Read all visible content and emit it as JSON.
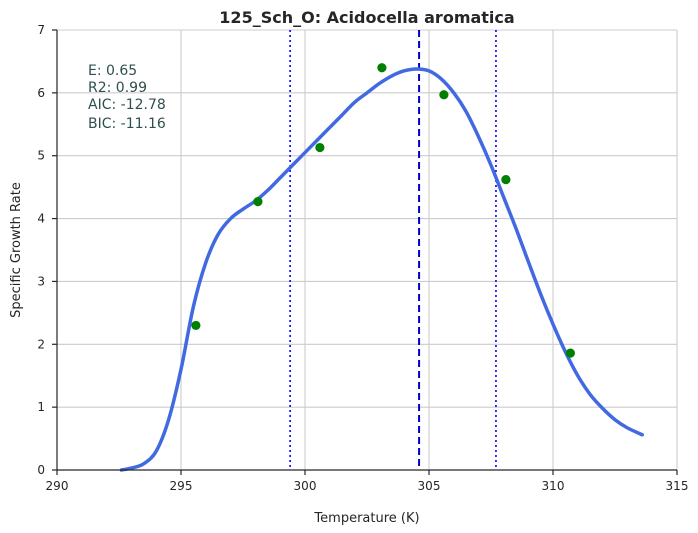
{
  "chart_data": {
    "type": "line",
    "title": "125_Sch_O: Acidocella aromatica",
    "xlabel": "Temperature (K)",
    "ylabel": "Specific Growth Rate",
    "xlim": [
      290,
      315
    ],
    "ylim": [
      0,
      7
    ],
    "x_ticks": [
      "290",
      "295",
      "300",
      "305",
      "310",
      "315"
    ],
    "y_ticks": [
      "0",
      "1",
      "2",
      "3",
      "4",
      "5",
      "6",
      "7"
    ],
    "grid": true,
    "colors": {
      "fit": "#4169e1",
      "points": "#008000",
      "peak_line": "#0000cd",
      "bound_lines": "#0000ff",
      "grid": "#cccccc",
      "axis": "#262626",
      "stats": "#2f4f4f"
    },
    "series": [
      {
        "kind": "fit",
        "x": [
          292.6,
          293.0,
          293.5,
          294.0,
          294.5,
          295.0,
          295.5,
          296.0,
          296.5,
          297.0,
          297.5,
          298.0,
          298.5,
          299.0,
          299.5,
          300.0,
          300.5,
          301.0,
          301.5,
          302.0,
          302.5,
          303.0,
          303.5,
          304.0,
          304.5,
          305.0,
          305.5,
          306.0,
          306.5,
          307.0,
          307.5,
          308.0,
          308.5,
          309.0,
          309.5,
          310.0,
          310.5,
          311.0,
          311.5,
          312.0,
          312.5,
          313.0,
          313.6
        ],
        "y": [
          0.0,
          0.03,
          0.1,
          0.3,
          0.8,
          1.6,
          2.6,
          3.3,
          3.75,
          4.0,
          4.15,
          4.28,
          4.45,
          4.65,
          4.85,
          5.05,
          5.25,
          5.45,
          5.65,
          5.85,
          6.0,
          6.15,
          6.27,
          6.35,
          6.38,
          6.35,
          6.22,
          6.0,
          5.7,
          5.3,
          4.85,
          4.35,
          3.85,
          3.32,
          2.8,
          2.32,
          1.88,
          1.5,
          1.2,
          0.98,
          0.8,
          0.67,
          0.56
        ]
      },
      {
        "kind": "points",
        "x": [
          295.6,
          298.1,
          300.6,
          303.1,
          305.6,
          308.1,
          310.7
        ],
        "y": [
          2.3,
          4.27,
          5.13,
          6.4,
          5.97,
          4.62,
          1.86
        ]
      }
    ],
    "vlines": [
      {
        "x": 304.6,
        "style": "dashed",
        "kind": "peak"
      },
      {
        "x": 299.4,
        "style": "dotted",
        "kind": "bound"
      },
      {
        "x": 307.7,
        "style": "dotted",
        "kind": "bound"
      }
    ],
    "annotations": [
      "E:  0.65",
      "R2:  0.99",
      "AIC: -12.78",
      "BIC: -11.16"
    ]
  }
}
